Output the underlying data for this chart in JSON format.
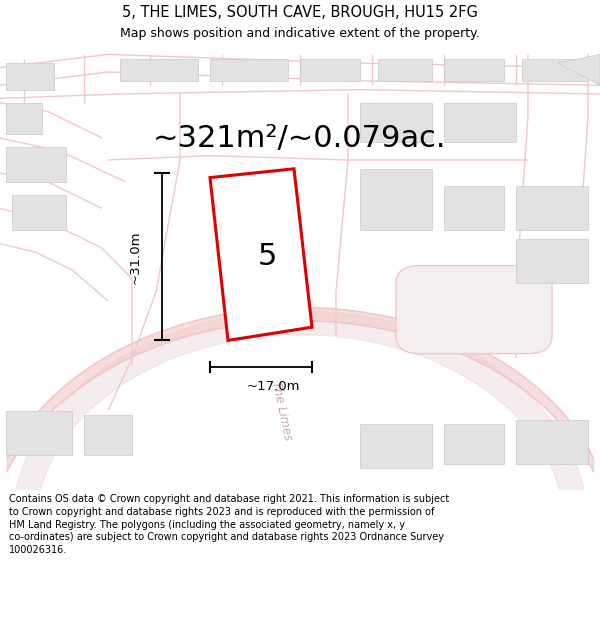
{
  "title": "5, THE LIMES, SOUTH CAVE, BROUGH, HU15 2FG",
  "subtitle": "Map shows position and indicative extent of the property.",
  "area_text": "~321m²/~0.079ac.",
  "label_number": "5",
  "dim_width": "~17.0m",
  "dim_height": "~31.0m",
  "footer_lines": [
    "Contains OS data © Crown copyright and database right 2021. This information is subject",
    "to Crown copyright and database rights 2023 and is reproduced with the permission of",
    "HM Land Registry. The polygons (including the associated geometry, namely x, y",
    "co-ordinates) are subject to Crown copyright and database rights 2023 Ordnance Survey",
    "100026316."
  ],
  "bg_color": "#ffffff",
  "map_bg": "#f7f7f7",
  "plot_color": "#dd0000",
  "road_color": "#f0c8c8",
  "building_color": "#e2e2e2",
  "road_label_color": "#c8aaaa",
  "fig_width": 6.0,
  "fig_height": 6.25,
  "title_fontsize": 10.5,
  "subtitle_fontsize": 9.0,
  "area_fontsize": 22,
  "label_fontsize": 22,
  "dim_fontsize": 9.5,
  "footer_fontsize": 7.0
}
